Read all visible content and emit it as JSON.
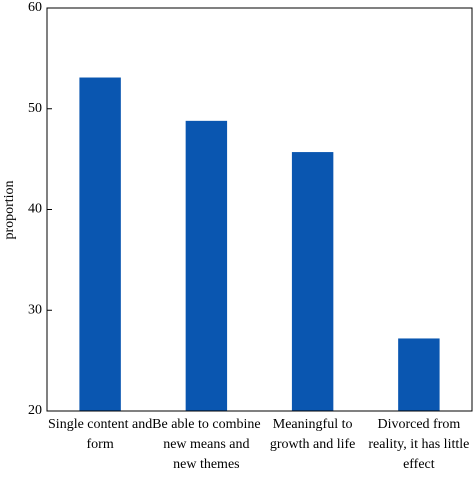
{
  "chart_data": {
    "type": "bar",
    "y_label": "proportion",
    "categories": [
      "Single content and form",
      "Be able to combine new means and new themes",
      "Meaningful to growth and life",
      "Divorced from reality, it has little effect"
    ],
    "values": [
      53.1,
      48.8,
      45.7,
      27.2
    ],
    "color": "#0a56b0",
    "ylim": [
      20,
      60
    ],
    "yticks": [
      20,
      30,
      40,
      50,
      60
    ],
    "grid": false
  }
}
